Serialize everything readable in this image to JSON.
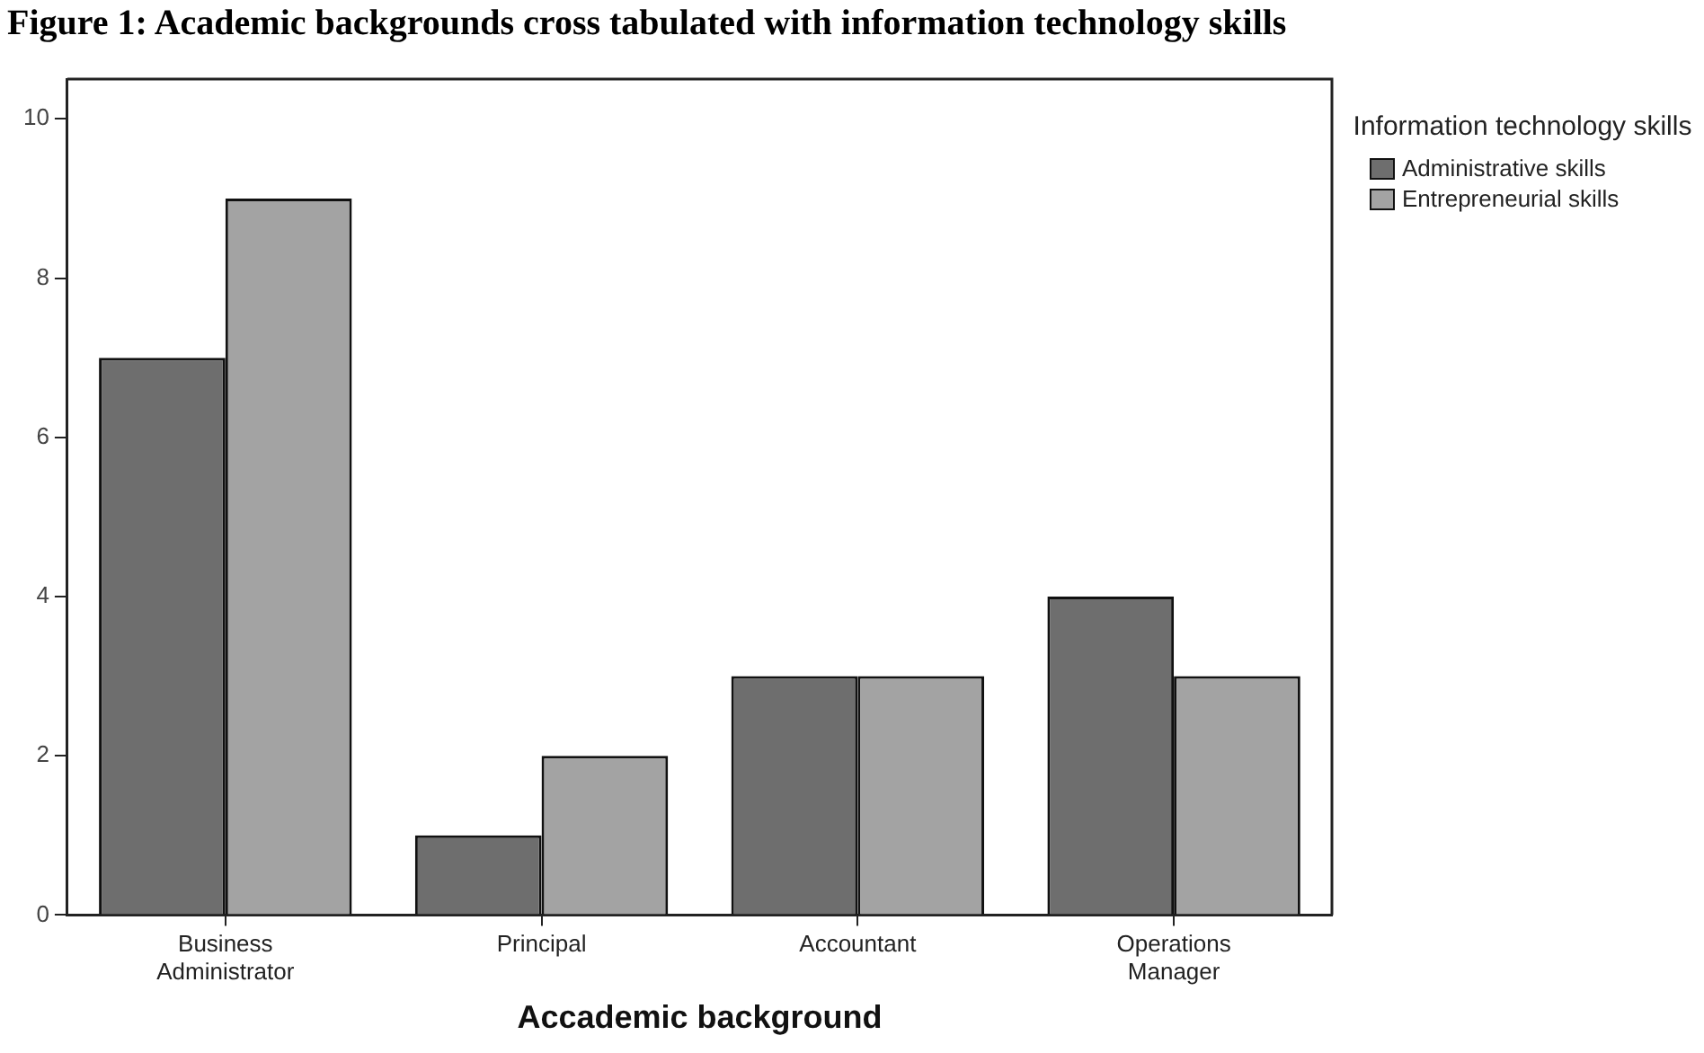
{
  "chart_data": {
    "type": "bar",
    "title": "Figure 1: Academic backgrounds cross tabulated with information technology skills",
    "xlabel": "Accademic background",
    "legend_title": "Information technology skills",
    "categories": [
      "Business Administrator",
      "Principal",
      "Accountant",
      "Operations Manager"
    ],
    "series": [
      {
        "name": "Administrative skills",
        "color": "#6e6e6e",
        "values": [
          7,
          1,
          3,
          4
        ]
      },
      {
        "name": "Entrepreneurial skills",
        "color": "#a3a3a3",
        "values": [
          9,
          2,
          3,
          3
        ]
      }
    ],
    "ylim": [
      0,
      10.5
    ],
    "yticks": [
      0,
      2,
      4,
      6,
      8,
      10
    ],
    "grid": false,
    "legend": "top right"
  }
}
